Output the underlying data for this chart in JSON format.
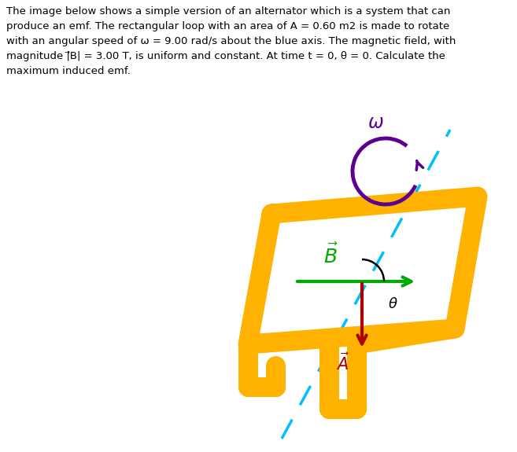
{
  "loop_color": "#FFB300",
  "axis_color": "#00BFFF",
  "B_arrow_color": "#00AA00",
  "A_arrow_color": "#AA0000",
  "omega_color": "#5B0090",
  "angle_color": "#000000",
  "background": "#FFFFFF",
  "text_line1": "The image below shows a simple version of an alternator which is a system that can",
  "text_line2": "produce an emf. The rectangular loop with an area of A = 0.60 m2 is made to rotate",
  "text_line3": "with an angular speed of ω = 9.00 rad/s about the blue axis. The magnetic field, with",
  "text_line4": "magnitude |⃗B| = 3.00 T, is uniform and constant. At time t = 0, θ = 0. Calculate the",
  "text_line5": "maximum induced emf.",
  "fig_width": 6.57,
  "fig_height": 5.75,
  "dpi": 100
}
